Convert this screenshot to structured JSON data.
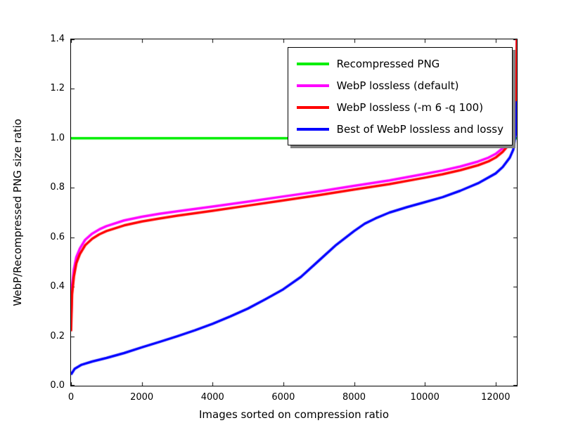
{
  "chart_data": {
    "type": "line",
    "title": "",
    "xlabel": "Images sorted on compression ratio",
    "ylabel": "WebP/Recompressed PNG size ratio",
    "xlim": [
      0,
      12600
    ],
    "ylim": [
      0.0,
      1.4
    ],
    "xticks": [
      "0",
      "2000",
      "4000",
      "6000",
      "8000",
      "10000",
      "12000"
    ],
    "yticks": [
      "0.0",
      "0.2",
      "0.4",
      "0.6",
      "0.8",
      "1.0",
      "1.2",
      "1.4"
    ],
    "grid": false,
    "legend_position": "upper right",
    "legend_shadow": true,
    "axis_color": "#000000",
    "background_color": "#ffffff",
    "series": [
      {
        "name": "Recompressed PNG",
        "color": "#00ee00",
        "x": [
          0,
          12600
        ],
        "y": [
          1.0,
          1.0
        ]
      },
      {
        "name": "WebP lossless (default)",
        "color": "#ff00ff",
        "x": [
          0,
          30,
          80,
          150,
          250,
          400,
          600,
          800,
          1000,
          1500,
          2000,
          2500,
          3000,
          4000,
          5000,
          6000,
          7000,
          8000,
          9000,
          10000,
          10500,
          11000,
          11500,
          11800,
          12000,
          12200,
          12350,
          12450,
          12520,
          12570,
          12600
        ],
        "y": [
          0.27,
          0.4,
          0.47,
          0.52,
          0.555,
          0.59,
          0.615,
          0.632,
          0.645,
          0.668,
          0.683,
          0.695,
          0.705,
          0.724,
          0.744,
          0.765,
          0.785,
          0.808,
          0.83,
          0.856,
          0.87,
          0.886,
          0.906,
          0.922,
          0.937,
          0.96,
          0.985,
          1.01,
          1.05,
          1.13,
          1.4
        ]
      },
      {
        "name": "WebP lossless (-m 6 -q 100)",
        "color": "#ff0000",
        "x": [
          0,
          30,
          80,
          150,
          250,
          400,
          600,
          800,
          1000,
          1500,
          2000,
          2500,
          3000,
          4000,
          5000,
          6000,
          7000,
          8000,
          9000,
          10000,
          10500,
          11000,
          11500,
          11800,
          12000,
          12200,
          12350,
          12450,
          12520,
          12570,
          12600
        ],
        "y": [
          0.22,
          0.37,
          0.44,
          0.495,
          0.532,
          0.568,
          0.594,
          0.612,
          0.625,
          0.648,
          0.664,
          0.676,
          0.687,
          0.707,
          0.728,
          0.749,
          0.77,
          0.793,
          0.815,
          0.841,
          0.855,
          0.871,
          0.891,
          0.907,
          0.922,
          0.945,
          0.97,
          0.998,
          1.04,
          1.12,
          1.4
        ]
      },
      {
        "name": "Best of WebP lossless and lossy",
        "color": "#0000ff",
        "x": [
          0,
          100,
          300,
          600,
          1000,
          1500,
          2000,
          2500,
          3000,
          3500,
          4000,
          4500,
          5000,
          5500,
          6000,
          6500,
          7000,
          7500,
          8000,
          8300,
          8600,
          9000,
          9500,
          10000,
          10500,
          11000,
          11500,
          12000,
          12200,
          12400,
          12500,
          12570,
          12600
        ],
        "y": [
          0.045,
          0.068,
          0.085,
          0.098,
          0.112,
          0.132,
          0.155,
          0.177,
          0.2,
          0.224,
          0.25,
          0.28,
          0.312,
          0.35,
          0.39,
          0.44,
          0.505,
          0.57,
          0.625,
          0.655,
          0.676,
          0.7,
          0.722,
          0.742,
          0.762,
          0.788,
          0.818,
          0.858,
          0.884,
          0.922,
          0.955,
          1.02,
          1.15
        ]
      }
    ]
  }
}
